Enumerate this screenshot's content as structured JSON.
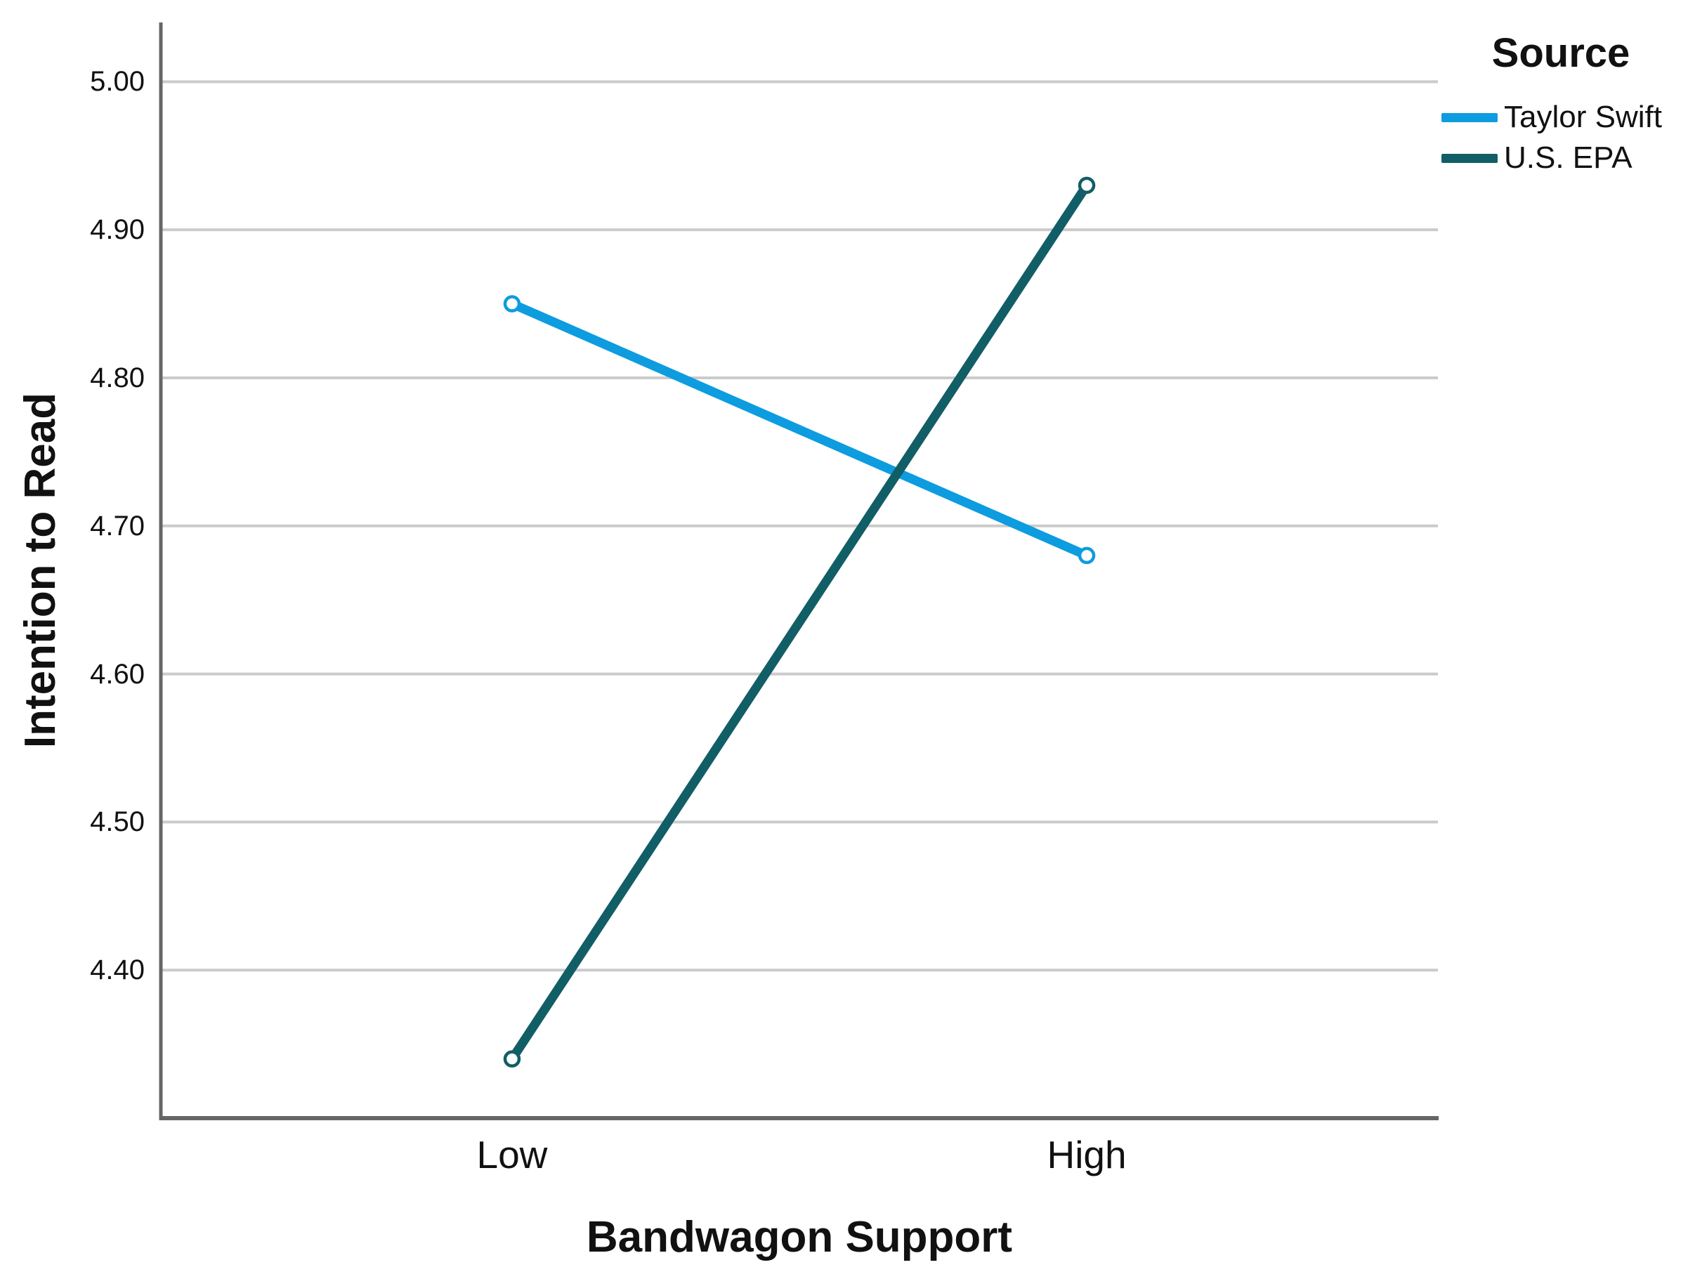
{
  "chart_data": {
    "type": "line",
    "title": "",
    "legend_title": "Source",
    "legend_position": "top-right",
    "xlabel": "Bandwagon Support",
    "ylabel": "Intention to Read",
    "categories": [
      "Low",
      "High"
    ],
    "series": [
      {
        "name": "Taylor Swift",
        "values": [
          4.85,
          4.68
        ],
        "color": "#0D9CDF"
      },
      {
        "name": "U.S. EPA",
        "values": [
          4.34,
          4.93
        ],
        "color": "#115E66"
      }
    ],
    "yticks": [
      4.4,
      4.5,
      4.6,
      4.7,
      4.8,
      4.9,
      5.0
    ],
    "ytick_labels": [
      "4.40",
      "4.50",
      "4.60",
      "4.70",
      "4.80",
      "4.90",
      "5.00"
    ],
    "ylim": [
      4.3,
      5.04
    ],
    "grid": "horizontal-only",
    "gridline_color": "#CBCBCB",
    "axis_color": "#666666",
    "marker": "open-circle",
    "text_color": "#111111"
  }
}
